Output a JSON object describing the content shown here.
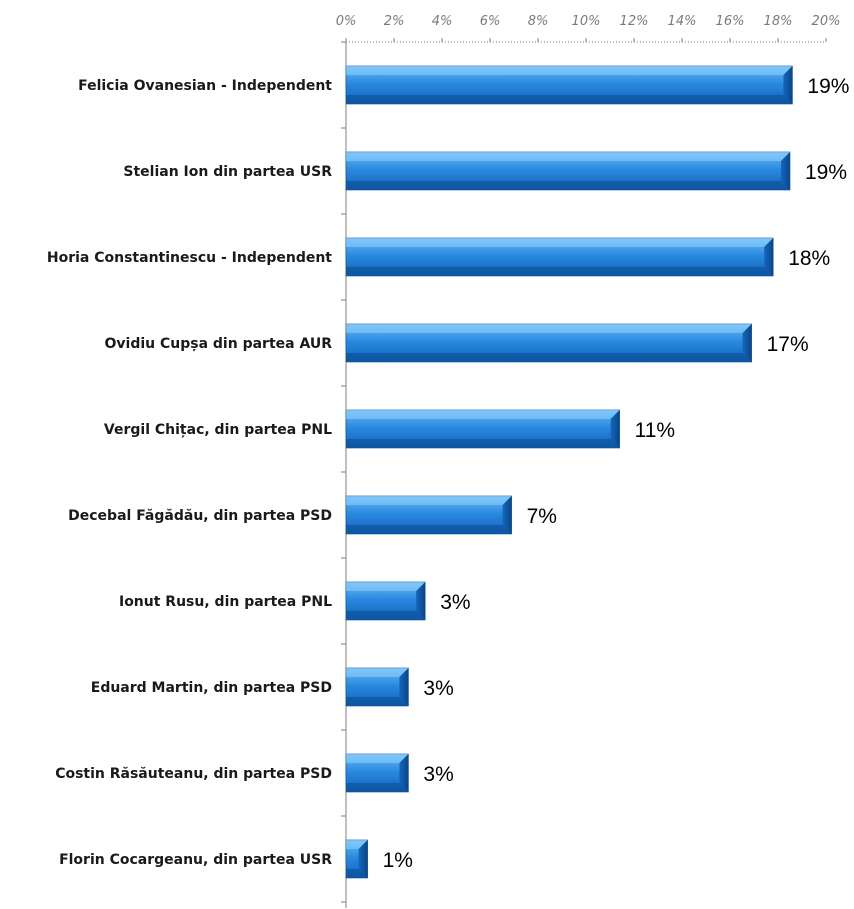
{
  "colors": {
    "bar_light": "#5fb3f0",
    "bar_mid": "#1f7fd4",
    "bar_dark": "#0b4f96",
    "axis": "#808080",
    "tick_text": "#7a7a7a",
    "label_text": "#1a1a1a"
  },
  "chart_data": {
    "type": "bar",
    "orientation": "horizontal",
    "categories": [
      "Felicia Ovanesian - Independent",
      "Stelian Ion din partea USR",
      "Horia Constantinescu - Independent",
      "Ovidiu Cupșa din partea AUR",
      "Vergil Chițac, din partea PNL",
      "Decebal Făgădău, din partea PSD",
      "Ionut Rusu, din partea PNL",
      "Eduard Martin, din partea PSD",
      "Costin Răsăuteanu, din partea PSD",
      "Florin Cocargeanu, din partea USR"
    ],
    "values": [
      18.6,
      18.5,
      17.8,
      16.9,
      11.4,
      6.9,
      3.3,
      2.6,
      2.6,
      0.9
    ],
    "data_labels": [
      "19%",
      "19%",
      "18%",
      "17%",
      "11%",
      "7%",
      "3%",
      "3%",
      "3%",
      "1%"
    ],
    "xlim": [
      0,
      20
    ],
    "x_ticks": [
      0,
      2,
      4,
      6,
      8,
      10,
      12,
      14,
      16,
      18,
      20
    ],
    "x_tick_labels": [
      "0%",
      "2%",
      "4%",
      "6%",
      "8%",
      "10%",
      "12%",
      "14%",
      "16%",
      "18%",
      "20%"
    ],
    "x_axis_position": "top",
    "grid": false,
    "legend": "none",
    "title": "",
    "xlabel": "",
    "ylabel": ""
  }
}
